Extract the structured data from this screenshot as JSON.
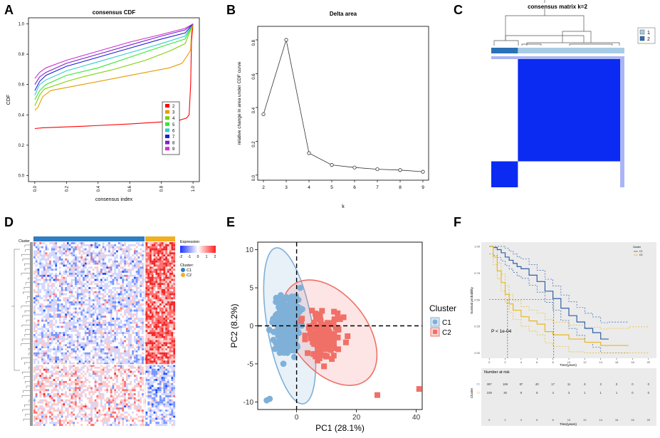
{
  "panel_labels": [
    "A",
    "B",
    "C",
    "D",
    "E",
    "F"
  ],
  "chart_data": [
    {
      "id": "A",
      "type": "line",
      "title": "consensus CDF",
      "xlabel": "consensus index",
      "ylabel": "CDF",
      "xlim": [
        0,
        1
      ],
      "ylim": [
        0,
        1
      ],
      "xticks": [
        "0.0",
        "0.2",
        "0.4",
        "0.6",
        "0.8",
        "1.0"
      ],
      "yticks": [
        "0.0",
        "0.2",
        "0.4",
        "0.6",
        "0.8",
        "1.0"
      ],
      "legend_position": "right",
      "series": [
        {
          "name": "2",
          "color": "#ff0000",
          "points": [
            [
              0,
              0.31
            ],
            [
              0.05,
              0.315
            ],
            [
              0.3,
              0.325
            ],
            [
              0.6,
              0.34
            ],
            [
              0.9,
              0.36
            ],
            [
              0.96,
              0.38
            ],
            [
              0.975,
              0.4
            ],
            [
              0.985,
              0.6
            ],
            [
              0.99,
              0.88
            ],
            [
              1,
              1
            ]
          ]
        },
        {
          "name": "3",
          "color": "#e59c00",
          "points": [
            [
              0,
              0.43
            ],
            [
              0.02,
              0.45
            ],
            [
              0.05,
              0.52
            ],
            [
              0.1,
              0.56
            ],
            [
              0.3,
              0.6
            ],
            [
              0.6,
              0.66
            ],
            [
              0.85,
              0.71
            ],
            [
              0.93,
              0.74
            ],
            [
              0.97,
              0.8
            ],
            [
              0.985,
              0.83
            ],
            [
              0.99,
              0.95
            ],
            [
              1,
              1
            ]
          ]
        },
        {
          "name": "4",
          "color": "#7fcf00",
          "points": [
            [
              0,
              0.46
            ],
            [
              0.03,
              0.53
            ],
            [
              0.06,
              0.57
            ],
            [
              0.2,
              0.62
            ],
            [
              0.3,
              0.65
            ],
            [
              0.5,
              0.7
            ],
            [
              0.7,
              0.76
            ],
            [
              0.85,
              0.82
            ],
            [
              0.95,
              0.87
            ],
            [
              1,
              1
            ]
          ]
        },
        {
          "name": "5",
          "color": "#33e633",
          "points": [
            [
              0,
              0.5
            ],
            [
              0.03,
              0.56
            ],
            [
              0.07,
              0.6
            ],
            [
              0.2,
              0.66
            ],
            [
              0.4,
              0.71
            ],
            [
              0.6,
              0.78
            ],
            [
              0.8,
              0.85
            ],
            [
              0.95,
              0.9
            ],
            [
              1,
              1
            ]
          ]
        },
        {
          "name": "6",
          "color": "#33cccc",
          "points": [
            [
              0,
              0.53
            ],
            [
              0.03,
              0.6
            ],
            [
              0.07,
              0.63
            ],
            [
              0.2,
              0.69
            ],
            [
              0.4,
              0.75
            ],
            [
              0.6,
              0.81
            ],
            [
              0.8,
              0.87
            ],
            [
              0.95,
              0.92
            ],
            [
              1,
              1
            ]
          ]
        },
        {
          "name": "7",
          "color": "#1f1fcc",
          "points": [
            [
              0,
              0.56
            ],
            [
              0.03,
              0.62
            ],
            [
              0.07,
              0.66
            ],
            [
              0.2,
              0.72
            ],
            [
              0.4,
              0.78
            ],
            [
              0.6,
              0.84
            ],
            [
              0.8,
              0.9
            ],
            [
              0.95,
              0.94
            ],
            [
              1,
              1
            ]
          ]
        },
        {
          "name": "8",
          "color": "#7a20cc",
          "points": [
            [
              0,
              0.6
            ],
            [
              0.03,
              0.65
            ],
            [
              0.07,
              0.68
            ],
            [
              0.2,
              0.74
            ],
            [
              0.4,
              0.8
            ],
            [
              0.6,
              0.86
            ],
            [
              0.8,
              0.92
            ],
            [
              0.95,
              0.96
            ],
            [
              1,
              1
            ]
          ]
        },
        {
          "name": "9",
          "color": "#cc33cc",
          "points": [
            [
              0,
              0.64
            ],
            [
              0.03,
              0.68
            ],
            [
              0.07,
              0.71
            ],
            [
              0.2,
              0.76
            ],
            [
              0.4,
              0.82
            ],
            [
              0.6,
              0.88
            ],
            [
              0.8,
              0.93
            ],
            [
              0.95,
              0.97
            ],
            [
              1,
              1
            ]
          ]
        }
      ]
    },
    {
      "id": "B",
      "type": "line",
      "title": "Delta area",
      "xlabel": "k",
      "ylabel": "relative change in area under CDF curve",
      "xlim": [
        2,
        9
      ],
      "ylim": [
        0,
        0.85
      ],
      "x": [
        2,
        3,
        4,
        5,
        6,
        7,
        8,
        9
      ],
      "y": [
        0.36,
        0.8,
        0.13,
        0.06,
        0.045,
        0.035,
        0.03,
        0.02
      ],
      "xticks": [
        "2",
        "3",
        "4",
        "5",
        "6",
        "7",
        "8",
        "9"
      ],
      "yticks": [
        "0.0",
        "0.2",
        "0.4",
        "0.6",
        "0.8"
      ]
    },
    {
      "id": "C",
      "type": "heatmap",
      "title": "consensus matrix k=2",
      "legend": [
        {
          "name": "1",
          "color": "#a8cce6"
        },
        {
          "name": "2",
          "color": "#2a72b5"
        }
      ],
      "cluster_fractions": [
        0.2,
        0.8
      ],
      "matrix_color": "#0b2bf2"
    },
    {
      "id": "D",
      "type": "heatmap",
      "row_label": "Cluster",
      "legend_title": "Expression",
      "color_scale": [
        "#1e32ff",
        "#ffffff",
        "#ff1e1e"
      ],
      "scale_ticks": [
        "-2",
        "-1",
        "0",
        "1",
        "2"
      ],
      "cluster_legend_title": "Cluster:",
      "clusters": [
        {
          "name": "C1",
          "color": "#2f7ec2"
        },
        {
          "name": "C2",
          "color": "#f0b020"
        }
      ]
    },
    {
      "id": "E",
      "type": "scatter",
      "xlabel": "PC1 (28.1%)",
      "ylabel": "PC2 (8.2%)",
      "xlim": [
        -13,
        42
      ],
      "ylim": [
        -11,
        11
      ],
      "xticks": [
        "0",
        "20",
        "40"
      ],
      "yticks": [
        "-10",
        "-5",
        "0",
        "5",
        "10"
      ],
      "legend_title": "Cluster",
      "series": [
        {
          "name": "C1",
          "color": "#7fb0d8",
          "shape": "circle",
          "center": [
            -3,
            0.5
          ],
          "spread": [
            3.6,
            3.2
          ],
          "count": 360,
          "ellipse": {
            "cx": -2.3,
            "cy": 0,
            "rx": 7.5,
            "ry": 10.4,
            "angle": -10
          }
        },
        {
          "name": "C2",
          "color": "#f07068",
          "shape": "square",
          "center": [
            9,
            -1.5
          ],
          "spread": [
            5.5,
            3.0
          ],
          "count": 130,
          "ellipse": {
            "cx": 11,
            "cy": -0.9,
            "rx": 12.6,
            "ry": 7.9,
            "angle": -38
          }
        }
      ],
      "outliers": [
        [
          27,
          -9.1
        ],
        [
          41,
          -8.3
        ],
        [
          -9,
          -9.6
        ],
        [
          -10,
          -9.8
        ]
      ]
    },
    {
      "id": "F",
      "type": "line",
      "xlabel": "Time(years)",
      "ylabel": "Survival probability",
      "xlim": [
        0,
        20
      ],
      "ylim": [
        0,
        1
      ],
      "xticks": [
        "0",
        "2",
        "4",
        "6",
        "8",
        "10",
        "12",
        "14",
        "16",
        "18",
        "20"
      ],
      "yticks": [
        "0.00",
        "0.25",
        "0.50",
        "0.75",
        "1.00"
      ],
      "legend_title": "Cluster",
      "pvalue": "P < 1e-04",
      "median_times": [
        2.3,
        8.1
      ],
      "series": [
        {
          "name": "C1",
          "color": "#2f5fa8",
          "points": [
            [
              0,
              1
            ],
            [
              0.5,
              0.99
            ],
            [
              1,
              0.97
            ],
            [
              1.5,
              0.94
            ],
            [
              2,
              0.9
            ],
            [
              2.5,
              0.87
            ],
            [
              3,
              0.84
            ],
            [
              3.5,
              0.81
            ],
            [
              4,
              0.79
            ],
            [
              5,
              0.73
            ],
            [
              6,
              0.67
            ],
            [
              7,
              0.58
            ],
            [
              8,
              0.51
            ],
            [
              9,
              0.42
            ],
            [
              10,
              0.35
            ],
            [
              11,
              0.29
            ],
            [
              12,
              0.23
            ],
            [
              13,
              0.19
            ],
            [
              14,
              0.13
            ],
            [
              15,
              0.13
            ]
          ]
        },
        {
          "name": "C2",
          "color": "#e8b820",
          "points": [
            [
              0,
              1
            ],
            [
              0.5,
              0.9
            ],
            [
              1,
              0.77
            ],
            [
              1.5,
              0.66
            ],
            [
              2,
              0.55
            ],
            [
              2.5,
              0.46
            ],
            [
              3,
              0.4
            ],
            [
              4,
              0.34
            ],
            [
              5,
              0.3
            ],
            [
              6,
              0.27
            ],
            [
              7,
              0.2
            ],
            [
              8,
              0.17
            ],
            [
              10,
              0.13
            ],
            [
              12,
              0.1
            ],
            [
              14,
              0.07
            ],
            [
              15,
              0.07
            ],
            [
              17.5,
              0.07
            ]
          ]
        }
      ],
      "risk_table": {
        "title": "Number at risk",
        "row_label": "Cluster",
        "times": [
          "0",
          "2",
          "4",
          "6",
          "8",
          "10",
          "12",
          "14",
          "16",
          "18",
          "20"
        ],
        "rows": [
          {
            "name": "C1",
            "values": [
              "397",
              "169",
              "87",
              "40",
              "17",
              "11",
              "6",
              "3",
              "0",
              "0",
              "0"
            ]
          },
          {
            "name": "C2",
            "values": [
              "109",
              "26",
              "9",
              "6",
              "4",
              "3",
              "1",
              "1",
              "1",
              "0",
              "0"
            ]
          }
        ]
      }
    }
  ]
}
